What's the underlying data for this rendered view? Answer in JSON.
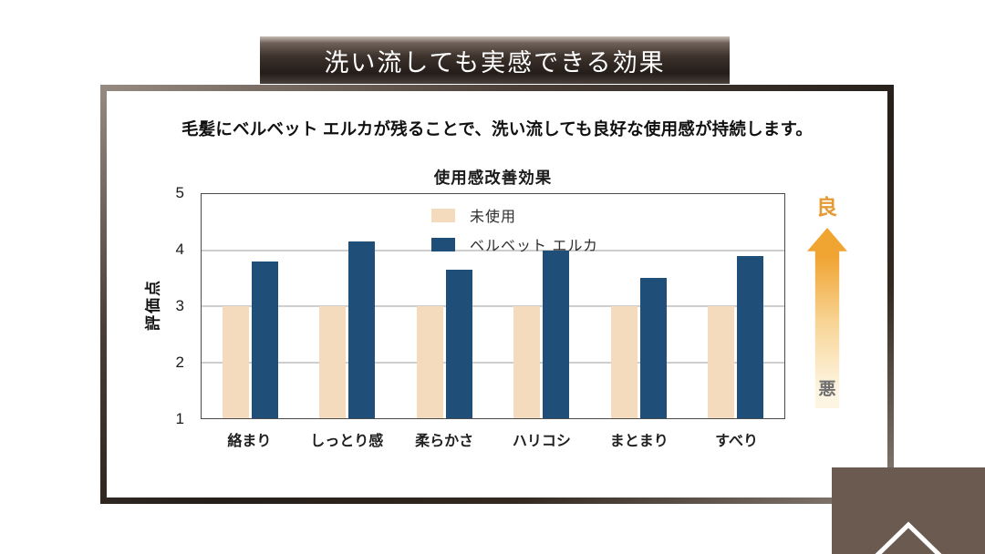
{
  "banner": {
    "title": "洗い流しても実感できる効果"
  },
  "subtitle": "毛髪にベルベット エルカが残ることで、洗い流しても良好な使用感が持続します。",
  "chart_data": {
    "type": "bar",
    "title": "使用感改善効果",
    "ylabel": "評価点",
    "ylim": [
      1,
      5
    ],
    "yticks": [
      1,
      2,
      3,
      4,
      5
    ],
    "grid": true,
    "legend_position": "inside-top-center",
    "categories": [
      "絡まり",
      "しっとり感",
      "柔らかさ",
      "ハリコシ",
      "まとまり",
      "すべり"
    ],
    "series": [
      {
        "name": "未使用",
        "color": "#F5DBBD",
        "values": [
          3,
          3,
          3,
          3,
          3,
          3
        ]
      },
      {
        "name": "ベルベット エルカ",
        "color": "#1F4E79",
        "values": [
          3.8,
          4.15,
          3.65,
          4.0,
          3.5,
          3.9
        ]
      }
    ]
  },
  "scale_indicator": {
    "top_label": "良",
    "bottom_label": "悪",
    "top_label_color": "#E49A35",
    "bottom_label_color": "#6F6F6F",
    "gradient_top": "#F0A432",
    "gradient_mid": "#F8D494",
    "gradient_bottom": "#FDF5E2"
  },
  "corner_button": {
    "icon": "chevron-up",
    "background": "#6B5A50",
    "chevron_color": "#FFFFFF"
  }
}
